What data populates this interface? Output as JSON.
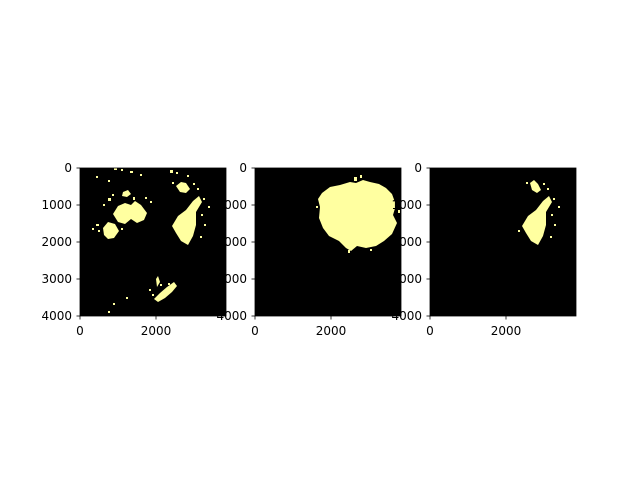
{
  "chart_data": [
    {
      "type": "heatmap",
      "panel": "left",
      "title": "",
      "xlabel": "",
      "ylabel": "",
      "xlim": [
        0,
        3850
      ],
      "ylim": [
        4000,
        0
      ],
      "xticks": [
        "0",
        "2000"
      ],
      "yticks": [
        "0",
        "1000",
        "2000",
        "3000",
        "4000"
      ],
      "colors": {
        "background": "#000000",
        "mask": "#ffffa0"
      },
      "regions": [
        {
          "label": "upper-left blob cluster",
          "center": [
            1200,
            1400
          ]
        },
        {
          "label": "left-edge blob",
          "center": [
            800,
            1700
          ]
        },
        {
          "label": "right blob",
          "center": [
            2800,
            1600
          ]
        },
        {
          "label": "lower blob",
          "center": [
            2000,
            3300
          ]
        }
      ]
    },
    {
      "type": "heatmap",
      "panel": "middle",
      "title": "",
      "xlabel": "",
      "ylabel": "",
      "xlim": [
        0,
        3850
      ],
      "ylim": [
        4000,
        0
      ],
      "xticks": [
        "0",
        "2000"
      ],
      "yticks": [
        "0",
        "1000",
        "2000",
        "3000",
        "4000"
      ],
      "colors": {
        "background": "#000000",
        "mask": "#ffffa0"
      },
      "regions": [
        {
          "label": "central large blob",
          "center": [
            2650,
            1350
          ]
        }
      ]
    },
    {
      "type": "heatmap",
      "panel": "right",
      "title": "",
      "xlabel": "",
      "ylabel": "",
      "xlim": [
        0,
        3850
      ],
      "ylim": [
        4000,
        0
      ],
      "xticks": [
        "0",
        "2000"
      ],
      "yticks": [
        "0",
        "1000",
        "2000",
        "3000",
        "4000"
      ],
      "colors": {
        "background": "#000000",
        "mask": "#ffffa0"
      },
      "regions": [
        {
          "label": "right blob",
          "center": [
            2800,
            1600
          ]
        }
      ]
    }
  ]
}
